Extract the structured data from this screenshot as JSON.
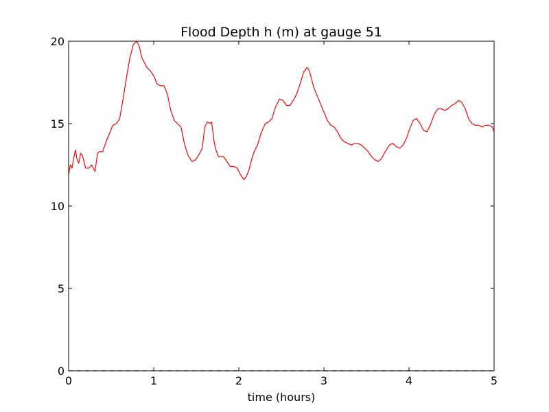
{
  "chart_data": {
    "type": "line",
    "title": "Flood Depth h (m) at gauge 51",
    "xlabel": "time (hours)",
    "ylabel": "",
    "xlim": [
      0,
      5
    ],
    "ylim": [
      0,
      20
    ],
    "xticks": [
      0,
      1,
      2,
      3,
      4,
      5
    ],
    "yticks": [
      0,
      5,
      10,
      15,
      20
    ],
    "grid": false,
    "series": [
      {
        "color": "#ff0000",
        "style": "solid",
        "x": [
          0.0,
          0.02,
          0.04,
          0.06,
          0.08,
          0.1,
          0.12,
          0.14,
          0.16,
          0.18,
          0.2,
          0.22,
          0.24,
          0.27,
          0.29,
          0.31,
          0.34,
          0.36,
          0.4,
          0.44,
          0.48,
          0.52,
          0.56,
          0.6,
          0.64,
          0.68,
          0.72,
          0.76,
          0.8,
          0.83,
          0.86,
          0.88,
          0.9,
          0.92,
          0.96,
          1.0,
          1.04,
          1.08,
          1.12,
          1.16,
          1.2,
          1.24,
          1.28,
          1.32,
          1.36,
          1.4,
          1.45,
          1.49,
          1.53,
          1.57,
          1.6,
          1.63,
          1.66,
          1.68,
          1.71,
          1.73,
          1.76,
          1.79,
          1.82,
          1.86,
          1.9,
          1.94,
          1.98,
          2.02,
          2.06,
          2.09,
          2.12,
          2.15,
          2.18,
          2.22,
          2.26,
          2.31,
          2.35,
          2.39,
          2.43,
          2.48,
          2.52,
          2.56,
          2.6,
          2.64,
          2.68,
          2.72,
          2.76,
          2.8,
          2.82,
          2.84,
          2.88,
          2.92,
          2.96,
          3.0,
          3.04,
          3.08,
          3.12,
          3.16,
          3.2,
          3.24,
          3.28,
          3.32,
          3.36,
          3.4,
          3.44,
          3.48,
          3.52,
          3.56,
          3.6,
          3.64,
          3.68,
          3.72,
          3.77,
          3.81,
          3.85,
          3.89,
          3.93,
          3.97,
          4.01,
          4.05,
          4.09,
          4.13,
          4.17,
          4.21,
          4.25,
          4.3,
          4.34,
          4.38,
          4.42,
          4.46,
          4.5,
          4.54,
          4.58,
          4.62,
          4.66,
          4.7,
          4.74,
          4.78,
          4.82,
          4.86,
          4.9,
          4.94,
          4.98,
          5.0
        ],
        "y": [
          11.9,
          12.5,
          12.3,
          12.9,
          13.4,
          12.8,
          12.6,
          13.2,
          13.1,
          12.7,
          12.3,
          12.3,
          12.3,
          12.5,
          12.3,
          12.1,
          13.2,
          13.3,
          13.3,
          13.9,
          14.4,
          14.9,
          15.0,
          15.3,
          16.5,
          17.8,
          19.0,
          19.8,
          20.0,
          19.7,
          19.0,
          18.8,
          18.6,
          18.4,
          18.2,
          17.9,
          17.4,
          17.3,
          17.3,
          16.8,
          15.8,
          15.2,
          15.0,
          14.8,
          13.8,
          13.1,
          12.7,
          12.8,
          13.1,
          13.5,
          14.8,
          15.1,
          15.0,
          15.1,
          13.9,
          13.4,
          13.0,
          13.0,
          13.0,
          12.7,
          12.4,
          12.4,
          12.3,
          11.9,
          11.6,
          11.8,
          12.2,
          12.8,
          13.3,
          13.7,
          14.4,
          15.0,
          15.1,
          15.3,
          16.0,
          16.5,
          16.4,
          16.1,
          16.1,
          16.4,
          16.8,
          17.4,
          18.1,
          18.4,
          18.3,
          18.0,
          17.2,
          16.7,
          16.2,
          15.7,
          15.2,
          14.9,
          14.8,
          14.5,
          14.1,
          13.9,
          13.8,
          13.7,
          13.8,
          13.8,
          13.7,
          13.5,
          13.3,
          13.0,
          12.8,
          12.7,
          12.9,
          13.3,
          13.7,
          13.8,
          13.6,
          13.5,
          13.7,
          14.1,
          14.7,
          15.2,
          15.3,
          15.0,
          14.6,
          14.5,
          14.9,
          15.6,
          15.9,
          15.9,
          15.8,
          15.9,
          16.1,
          16.2,
          16.4,
          16.3,
          15.9,
          15.3,
          15.0,
          14.9,
          14.9,
          14.8,
          14.9,
          14.9,
          14.8,
          14.5
        ]
      },
      {
        "color": "#000000",
        "style": "dashed",
        "x": [
          0,
          5
        ],
        "y": [
          0,
          0
        ]
      }
    ]
  }
}
